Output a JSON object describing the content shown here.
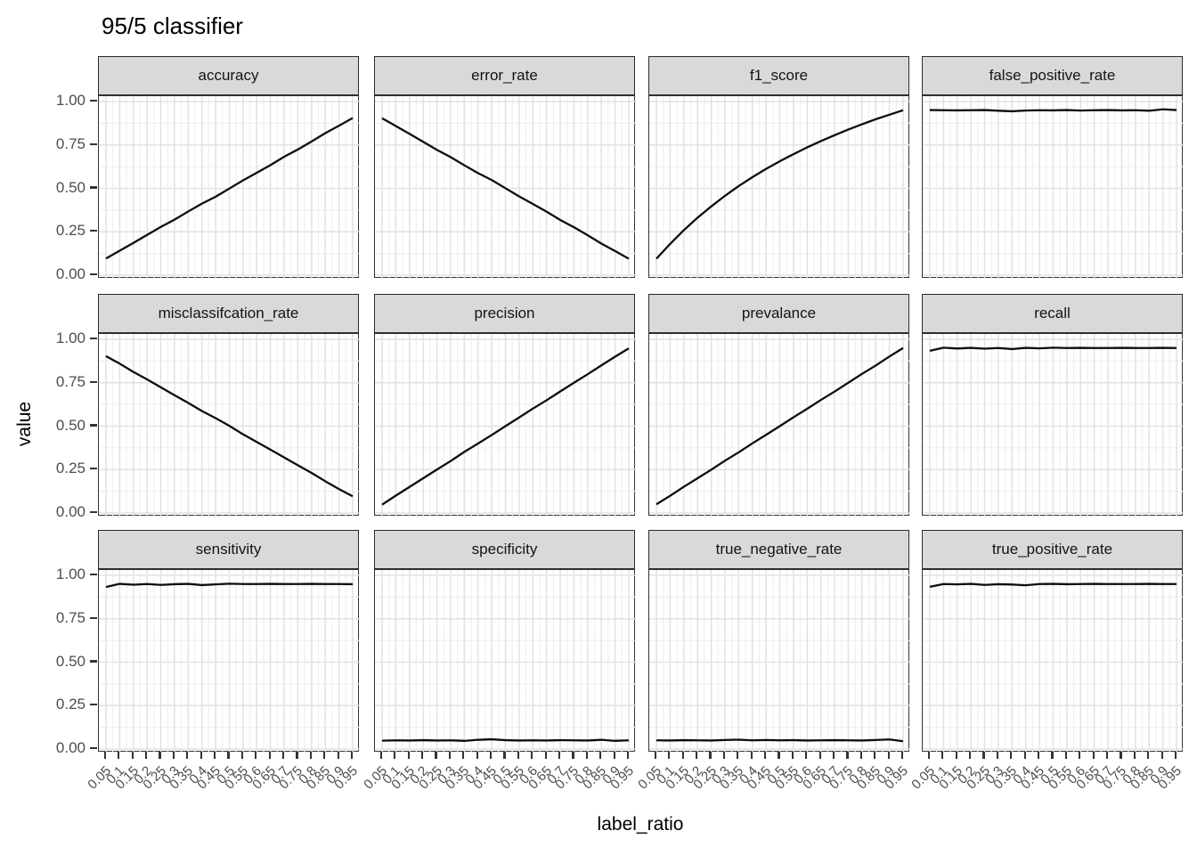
{
  "title": "95/5 classifier",
  "axes": {
    "x_title": "label_ratio",
    "y_title": "value",
    "y_ticks": [
      "1.00",
      "0.75",
      "0.50",
      "0.25",
      "0.00"
    ],
    "x_ticks": [
      "0.05",
      "0.1",
      "0.15",
      "0.2",
      "0.25",
      "0.3",
      "0.35",
      "0.4",
      "0.45",
      "0.5",
      "0.55",
      "0.6",
      "0.65",
      "0.7",
      "0.75",
      "0.8",
      "0.85",
      "0.9",
      "0.95"
    ]
  },
  "colors": {
    "strip_bg": "#d9d9d9",
    "strip_border": "#2a2a2a",
    "panel_border": "#333333",
    "grid_major": "#e2e2e2",
    "grid_minor": "#f0f0f0",
    "line": "#0d0d0d",
    "tick_mark": "#333333",
    "tick_label": "#4d4d4d"
  },
  "chart_data": {
    "type": "line",
    "title": "95/5 classifier",
    "xlabel": "label_ratio",
    "ylabel": "value",
    "ylim": [
      0,
      1
    ],
    "y_major_breaks": [
      0,
      0.25,
      0.5,
      0.75,
      1.0
    ],
    "grid": true,
    "legend": "none",
    "facet_layout": {
      "rows": 3,
      "cols": 4
    },
    "x": [
      0.05,
      0.1,
      0.15,
      0.2,
      0.25,
      0.3,
      0.35,
      0.4,
      0.45,
      0.5,
      0.55,
      0.6,
      0.65,
      0.7,
      0.75,
      0.8,
      0.85,
      0.9,
      0.95
    ],
    "facets": [
      {
        "name": "accuracy",
        "values": [
          0.096,
          0.141,
          0.186,
          0.232,
          0.278,
          0.32,
          0.367,
          0.412,
          0.452,
          0.499,
          0.546,
          0.59,
          0.634,
          0.682,
          0.724,
          0.77,
          0.818,
          0.861,
          0.905
        ]
      },
      {
        "name": "error_rate",
        "values": [
          0.904,
          0.859,
          0.814,
          0.768,
          0.722,
          0.68,
          0.633,
          0.588,
          0.548,
          0.501,
          0.454,
          0.41,
          0.366,
          0.318,
          0.276,
          0.23,
          0.182,
          0.139,
          0.095
        ]
      },
      {
        "name": "f1_score",
        "values": [
          0.095,
          0.18,
          0.259,
          0.331,
          0.396,
          0.457,
          0.513,
          0.564,
          0.612,
          0.656,
          0.697,
          0.736,
          0.772,
          0.806,
          0.839,
          0.869,
          0.898,
          0.924,
          0.95
        ]
      },
      {
        "name": "false_positive_rate",
        "values": [
          0.951,
          0.95,
          0.949,
          0.95,
          0.951,
          0.947,
          0.944,
          0.948,
          0.95,
          0.949,
          0.951,
          0.948,
          0.95,
          0.951,
          0.949,
          0.95,
          0.947,
          0.955,
          0.951
        ]
      },
      {
        "name": "misclassifcation_rate",
        "values": [
          0.903,
          0.86,
          0.812,
          0.769,
          0.724,
          0.678,
          0.634,
          0.587,
          0.546,
          0.502,
          0.453,
          0.409,
          0.365,
          0.32,
          0.275,
          0.231,
          0.183,
          0.138,
          0.096
        ]
      },
      {
        "name": "precision",
        "values": [
          0.048,
          0.1,
          0.15,
          0.2,
          0.25,
          0.299,
          0.352,
          0.4,
          0.449,
          0.5,
          0.55,
          0.601,
          0.649,
          0.7,
          0.75,
          0.799,
          0.85,
          0.9,
          0.948
        ]
      },
      {
        "name": "prevalance",
        "values": [
          0.05,
          0.099,
          0.151,
          0.2,
          0.249,
          0.301,
          0.349,
          0.401,
          0.45,
          0.5,
          0.551,
          0.6,
          0.651,
          0.699,
          0.75,
          0.801,
          0.849,
          0.901,
          0.95
        ]
      },
      {
        "name": "recall",
        "values": [
          0.934,
          0.952,
          0.947,
          0.951,
          0.946,
          0.95,
          0.944,
          0.951,
          0.948,
          0.952,
          0.95,
          0.951,
          0.95,
          0.95,
          0.951,
          0.95,
          0.95,
          0.951,
          0.95
        ]
      },
      {
        "name": "sensitivity",
        "values": [
          0.933,
          0.951,
          0.946,
          0.95,
          0.945,
          0.949,
          0.951,
          0.944,
          0.948,
          0.952,
          0.95,
          0.95,
          0.951,
          0.95,
          0.95,
          0.951,
          0.95,
          0.95,
          0.949
        ]
      },
      {
        "name": "specificity",
        "values": [
          0.048,
          0.05,
          0.049,
          0.051,
          0.049,
          0.05,
          0.047,
          0.053,
          0.056,
          0.051,
          0.049,
          0.05,
          0.049,
          0.051,
          0.05,
          0.049,
          0.053,
          0.047,
          0.05
        ]
      },
      {
        "name": "true_negative_rate",
        "values": [
          0.05,
          0.049,
          0.051,
          0.05,
          0.049,
          0.052,
          0.054,
          0.05,
          0.052,
          0.05,
          0.051,
          0.049,
          0.05,
          0.051,
          0.05,
          0.049,
          0.052,
          0.055,
          0.045
        ]
      },
      {
        "name": "true_positive_rate",
        "values": [
          0.934,
          0.95,
          0.948,
          0.951,
          0.945,
          0.949,
          0.947,
          0.943,
          0.95,
          0.951,
          0.949,
          0.95,
          0.951,
          0.95,
          0.95,
          0.95,
          0.951,
          0.95,
          0.95
        ]
      }
    ]
  }
}
